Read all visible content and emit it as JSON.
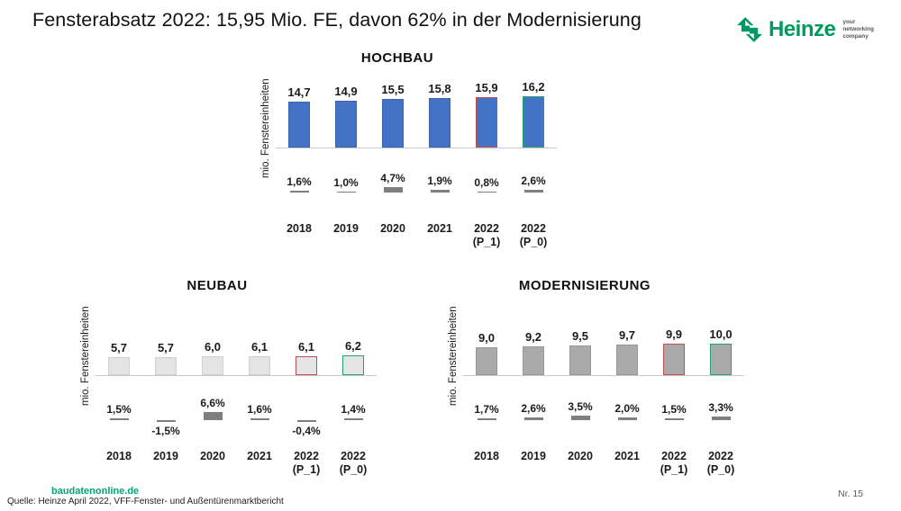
{
  "title": "Fensterabsatz 2022: 15,95 Mio. FE, davon 62% in der Modernisierung",
  "logo": {
    "name": "Heinze",
    "tagline_lines": [
      "your",
      "networking",
      "company"
    ],
    "brand_green": "#009a60"
  },
  "colors": {
    "highlight_red": "#c0504d",
    "highlight_green": "#21a36b",
    "pct_bar": "#7f7f7f",
    "axis": "#c9c9c9"
  },
  "chart_data": [
    {
      "type": "bar",
      "title": "HOCHBAU",
      "ylabel": "mio. Fenstereinheiten",
      "categories": [
        "2018",
        "2019",
        "2020",
        "2021",
        "2022 (P_1)",
        "2022 (P_0)"
      ],
      "values": [
        14.7,
        14.9,
        15.5,
        15.8,
        15.9,
        16.2
      ],
      "value_labels": [
        "14,7",
        "14,9",
        "15,5",
        "15,8",
        "15,9",
        "16,2"
      ],
      "pct_change": [
        1.6,
        1.0,
        4.7,
        1.9,
        0.8,
        2.6
      ],
      "pct_labels": [
        "1,6%",
        "1,0%",
        "4,7%",
        "1,9%",
        "0,8%",
        "2,6%"
      ],
      "bar_fill": "#4472c4",
      "bar_border": "#3a62ad",
      "border_overrides": [
        null,
        null,
        null,
        null,
        "#c0504d",
        "#21a36b"
      ],
      "grid": false,
      "legend": false
    },
    {
      "type": "bar",
      "title": "NEUBAU",
      "ylabel": "mio. Fenstereinheiten",
      "categories": [
        "2018",
        "2019",
        "2020",
        "2021",
        "2022 (P_1)",
        "2022 (P_0)"
      ],
      "values": [
        5.7,
        5.7,
        6.0,
        6.1,
        6.1,
        6.2
      ],
      "value_labels": [
        "5,7",
        "5,7",
        "6,0",
        "6,1",
        "6,1",
        "6,2"
      ],
      "pct_change": [
        1.5,
        -1.5,
        6.6,
        1.6,
        -0.4,
        1.4
      ],
      "pct_labels": [
        "1,5%",
        "-1,5%",
        "6,6%",
        "1,6%",
        "-0,4%",
        "1,4%"
      ],
      "bar_fill": "#e4e4e4",
      "bar_border": "#cfcfcf",
      "border_overrides": [
        null,
        null,
        null,
        null,
        "#c0504d",
        "#21a36b"
      ],
      "grid": false,
      "legend": false
    },
    {
      "type": "bar",
      "title": "MODERNISIERUNG",
      "ylabel": "mio. Fenstereinheiten",
      "categories": [
        "2018",
        "2019",
        "2020",
        "2021",
        "2022 (P_1)",
        "2022 (P_0)"
      ],
      "values": [
        9.0,
        9.2,
        9.5,
        9.7,
        9.9,
        10.0
      ],
      "value_labels": [
        "9,0",
        "9,2",
        "9,5",
        "9,7",
        "9,9",
        "10,0"
      ],
      "pct_change": [
        1.7,
        2.6,
        3.5,
        2.0,
        1.5,
        3.3
      ],
      "pct_labels": [
        "1,7%",
        "2,6%",
        "3,5%",
        "2,0%",
        "1,5%",
        "3,3%"
      ],
      "bar_fill": "#aaaaaa",
      "bar_border": "#979797",
      "border_overrides": [
        null,
        null,
        null,
        null,
        "#c0504d",
        "#21a36b"
      ],
      "grid": false,
      "legend": false
    }
  ],
  "footer": {
    "link": "baudatenonline.de",
    "source": "Quelle: Heinze April 2022, VFF-Fenster- und Außentürenmarktbericht",
    "page": "Nr. 15"
  }
}
